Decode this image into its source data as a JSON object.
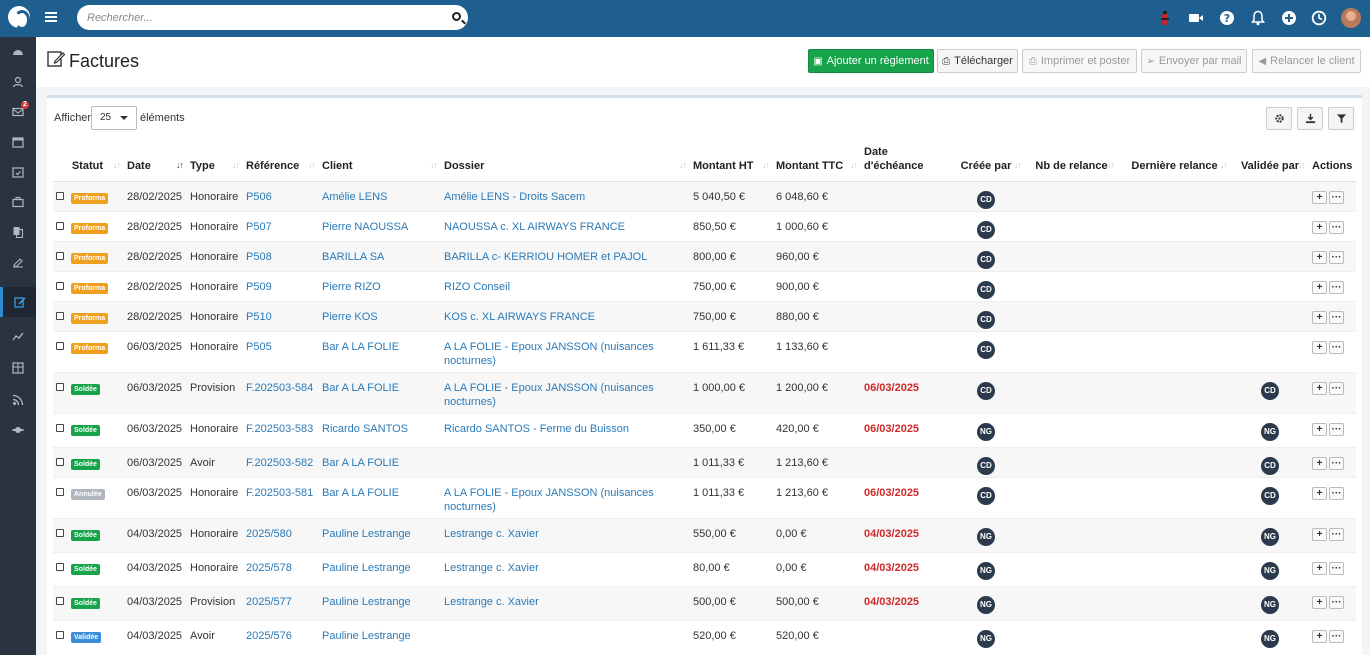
{
  "topbar": {
    "search_placeholder": "Rechercher...",
    "icons": [
      "extinguisher-icon",
      "video-icon",
      "help-icon",
      "bell-icon",
      "plus-circle-icon",
      "clock-icon"
    ]
  },
  "sidebar": {
    "notification_badge": "2"
  },
  "header": {
    "title": "Factures",
    "buttons": {
      "add_payment": "Ajouter un règlement",
      "download": "Télécharger",
      "print_post": "Imprimer et poster",
      "send_mail": "Envoyer par mail",
      "remind_client": "Relancer le client"
    }
  },
  "table_controls": {
    "show_label": "Afficher",
    "page_size": "25",
    "show_suffix": "éléments"
  },
  "columns": [
    "Statut",
    "Date",
    "Type",
    "Référence",
    "Client",
    "Dossier",
    "Montant HT",
    "Montant TTC",
    "Date d'échéance",
    "Créée par",
    "Nb de relance",
    "Dernière relance",
    "Validée par",
    "Actions"
  ],
  "colors": {
    "proforma": "#f0a020",
    "soldee": "#16a34a",
    "annulee": "#b0b6bd",
    "validee": "#3a8dd6",
    "due": "#cf2a2a",
    "link": "#2a7ab8"
  },
  "rows": [
    {
      "status": "Proforma",
      "status_type": "proforma",
      "date": "28/02/2025",
      "type": "Honoraire",
      "ref": "P506",
      "client": "Amélie LENS",
      "dossier": "Amélie LENS - Droits Sacem",
      "ht": "5 040,50 €",
      "ttc": "6 048,60 €",
      "due": "",
      "created_by": "CD",
      "validated_by": ""
    },
    {
      "status": "Proforma",
      "status_type": "proforma",
      "date": "28/02/2025",
      "type": "Honoraire",
      "ref": "P507",
      "client": "Pierre NAOUSSA",
      "dossier": "NAOUSSA c. XL AIRWAYS FRANCE",
      "ht": "850,50 €",
      "ttc": "1 000,60 €",
      "due": "",
      "created_by": "CD",
      "validated_by": ""
    },
    {
      "status": "Proforma",
      "status_type": "proforma",
      "date": "28/02/2025",
      "type": "Honoraire",
      "ref": "P508",
      "client": "BARILLA SA",
      "dossier": "BARILLA c- KERRIOU HOMER et PAJOL",
      "ht": "800,00 €",
      "ttc": "960,00 €",
      "due": "",
      "created_by": "CD",
      "validated_by": ""
    },
    {
      "status": "Proforma",
      "status_type": "proforma",
      "date": "28/02/2025",
      "type": "Honoraire",
      "ref": "P509",
      "client": "Pierre RIZO",
      "dossier": "RIZO Conseil",
      "ht": "750,00 €",
      "ttc": "900,00 €",
      "due": "",
      "created_by": "CD",
      "validated_by": ""
    },
    {
      "status": "Proforma",
      "status_type": "proforma",
      "date": "28/02/2025",
      "type": "Honoraire",
      "ref": "P510",
      "client": "Pierre KOS",
      "dossier": "KOS c. XL AIRWAYS FRANCE",
      "ht": "750,00 €",
      "ttc": "880,00 €",
      "due": "",
      "created_by": "CD",
      "validated_by": ""
    },
    {
      "status": "Proforma",
      "status_type": "proforma",
      "date": "06/03/2025",
      "type": "Honoraire",
      "ref": "P505",
      "client": "Bar A LA FOLIE",
      "dossier": "A LA FOLIE - Epoux JANSSON (nuisances nocturnes)",
      "ht": "1 611,33 €",
      "ttc": "1 133,60 €",
      "due": "",
      "created_by": "CD",
      "validated_by": ""
    },
    {
      "status": "Soldée",
      "status_type": "soldee",
      "date": "06/03/2025",
      "type": "Provision",
      "ref": "F.202503-584",
      "client": "Bar A LA FOLIE",
      "dossier": "A LA FOLIE - Epoux JANSSON (nuisances nocturnes)",
      "ht": "1 000,00 €",
      "ttc": "1 200,00 €",
      "due": "06/03/2025",
      "created_by": "CD",
      "validated_by": "CD"
    },
    {
      "status": "Soldée",
      "status_type": "soldee",
      "date": "06/03/2025",
      "type": "Honoraire",
      "ref": "F.202503-583",
      "client": "Ricardo SANTOS",
      "dossier": "Ricardo SANTOS - Ferme du Buisson",
      "ht": "350,00 €",
      "ttc": "420,00 €",
      "due": "06/03/2025",
      "created_by": "NG",
      "validated_by": "NG"
    },
    {
      "status": "Soldée",
      "status_type": "soldee",
      "date": "06/03/2025",
      "type": "Avoir",
      "ref": "F.202503-582",
      "client": "Bar A LA FOLIE",
      "dossier": "",
      "ht": "1 011,33 €",
      "ttc": "1 213,60 €",
      "due": "",
      "created_by": "CD",
      "validated_by": "CD"
    },
    {
      "status": "Annulée",
      "status_type": "annulee",
      "date": "06/03/2025",
      "type": "Honoraire",
      "ref": "F.202503-581",
      "client": "Bar A LA FOLIE",
      "dossier": "A LA FOLIE - Epoux JANSSON (nuisances nocturnes)",
      "ht": "1 011,33 €",
      "ttc": "1 213,60 €",
      "due": "06/03/2025",
      "created_by": "CD",
      "validated_by": "CD"
    },
    {
      "status": "Soldée",
      "status_type": "soldee",
      "date": "04/03/2025",
      "type": "Honoraire",
      "ref": "2025/580",
      "client": "Pauline Lestrange",
      "dossier": "Lestrange c. Xavier",
      "ht": "550,00 €",
      "ttc": "0,00 €",
      "due": "04/03/2025",
      "created_by": "NG",
      "validated_by": "NG"
    },
    {
      "status": "Soldée",
      "status_type": "soldee",
      "date": "04/03/2025",
      "type": "Honoraire",
      "ref": "2025/578",
      "client": "Pauline Lestrange",
      "dossier": "Lestrange c. Xavier",
      "ht": "80,00 €",
      "ttc": "0,00 €",
      "due": "04/03/2025",
      "created_by": "NG",
      "validated_by": "NG"
    },
    {
      "status": "Soldée",
      "status_type": "soldee",
      "date": "04/03/2025",
      "type": "Provision",
      "ref": "2025/577",
      "client": "Pauline Lestrange",
      "dossier": "Lestrange c. Xavier",
      "ht": "500,00 €",
      "ttc": "500,00 €",
      "due": "04/03/2025",
      "created_by": "NG",
      "validated_by": "NG"
    },
    {
      "status": "Validée",
      "status_type": "validee",
      "date": "04/03/2025",
      "type": "Avoir",
      "ref": "2025/576",
      "client": "Pauline Lestrange",
      "dossier": "",
      "ht": "520,00 €",
      "ttc": "520,00 €",
      "due": "",
      "created_by": "NG",
      "validated_by": "NG"
    }
  ]
}
